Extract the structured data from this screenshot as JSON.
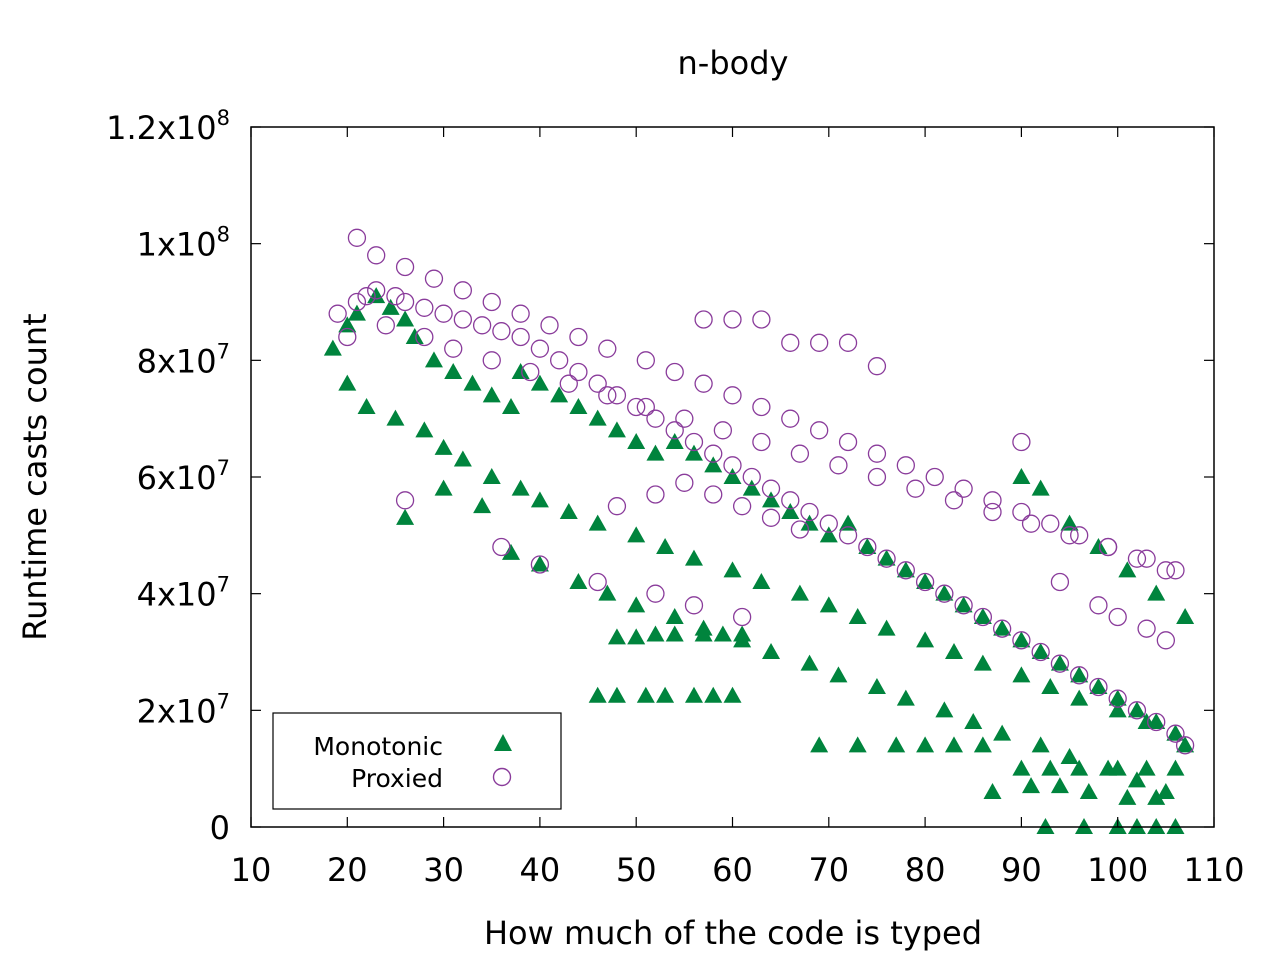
{
  "chart_data": {
    "type": "scatter",
    "title": "n-body",
    "xlabel": "How much of the code is typed",
    "ylabel": "Runtime casts count",
    "xlim": [
      10,
      110
    ],
    "ylim": [
      0,
      120000000
    ],
    "x_ticks": [
      "10",
      "20",
      "30",
      "40",
      "50",
      "60",
      "70",
      "80",
      "90",
      "100",
      "110"
    ],
    "y_ticks": [
      {
        "value": 0,
        "label": "0"
      },
      {
        "value": 20000000,
        "mant": "2x10",
        "exp": "7"
      },
      {
        "value": 40000000,
        "mant": "4x10",
        "exp": "7"
      },
      {
        "value": 60000000,
        "mant": "6x10",
        "exp": "7"
      },
      {
        "value": 80000000,
        "mant": "8x10",
        "exp": "7"
      },
      {
        "value": 100000000,
        "mant": "1x10",
        "exp": "8"
      },
      {
        "value": 120000000,
        "mant": "1.2x10",
        "exp": "8"
      }
    ],
    "grid": false,
    "legend_position": "bottom-left",
    "series": [
      {
        "name": "Monotonic",
        "marker": "filled-triangle",
        "color": "#00843d",
        "x": [
          18.5,
          20,
          21,
          23,
          24.5,
          26,
          27,
          29,
          31,
          33,
          35,
          37,
          38,
          40,
          42,
          44,
          46,
          48,
          50,
          52,
          54,
          56,
          58,
          60,
          62,
          64,
          66,
          68,
          70,
          72,
          74,
          76,
          78,
          80,
          82,
          84,
          86,
          88,
          90,
          92,
          94,
          96,
          98,
          100,
          102,
          104,
          106,
          107,
          20,
          22,
          25,
          28,
          30,
          32,
          35,
          38,
          40,
          43,
          46,
          50,
          53,
          56,
          60,
          63,
          67,
          70,
          73,
          76,
          80,
          83,
          86,
          90,
          93,
          96,
          100,
          103,
          106,
          26,
          30,
          34,
          37,
          40,
          44,
          47,
          50,
          54,
          57,
          61,
          64,
          68,
          71,
          75,
          78,
          82,
          85,
          88,
          92,
          95,
          99,
          102,
          105,
          46,
          48,
          51,
          53,
          56,
          58,
          60,
          48,
          50,
          52,
          54,
          57,
          59,
          61,
          69,
          73,
          77,
          80,
          83,
          86,
          90,
          93,
          96,
          100,
          103,
          106,
          92.5,
          96.5,
          100,
          102,
          104,
          106,
          90,
          92,
          95,
          98,
          101,
          104,
          107,
          87,
          91,
          94,
          97,
          101,
          104
        ],
        "y": [
          82,
          86,
          88,
          91,
          89,
          87,
          84,
          80,
          78,
          76,
          74,
          72,
          78,
          76,
          74,
          72,
          70,
          68,
          66,
          64,
          66,
          64,
          62,
          60,
          58,
          56,
          54,
          52,
          50,
          52,
          48,
          46,
          44,
          42,
          40,
          38,
          36,
          34,
          32,
          30,
          28,
          26,
          24,
          22,
          20,
          18,
          16,
          14,
          76,
          72,
          70,
          68,
          65,
          63,
          60,
          58,
          56,
          54,
          52,
          50,
          48,
          46,
          44,
          42,
          40,
          38,
          36,
          34,
          32,
          30,
          28,
          26,
          24,
          22,
          20,
          18,
          16,
          53,
          58,
          55,
          47,
          45,
          42,
          40,
          38,
          36,
          34,
          32,
          30,
          28,
          26,
          24,
          22,
          20,
          18,
          16,
          14,
          12,
          10,
          8,
          6,
          22.5,
          22.5,
          22.5,
          22.5,
          22.5,
          22.5,
          22.5,
          32.5,
          32.5,
          33,
          33,
          33,
          33,
          33,
          14,
          14,
          14,
          14,
          14,
          14,
          10,
          10,
          10,
          10,
          10,
          10,
          0,
          0,
          0,
          0,
          0,
          0,
          60,
          58,
          52,
          48,
          44,
          40,
          36,
          6,
          7,
          7,
          6,
          5,
          5
        ]
      },
      {
        "name": "Proxied",
        "marker": "open-circle",
        "color": "#8a3c9b",
        "x": [
          19,
          21,
          22,
          23,
          25,
          26,
          28,
          30,
          32,
          34,
          36,
          38,
          40,
          42,
          44,
          46,
          48,
          50,
          52,
          54,
          56,
          58,
          60,
          62,
          64,
          66,
          68,
          70,
          72,
          74,
          76,
          78,
          80,
          82,
          84,
          86,
          88,
          90,
          92,
          94,
          96,
          98,
          100,
          102,
          104,
          106,
          107,
          21,
          23,
          26,
          29,
          32,
          35,
          38,
          41,
          44,
          47,
          51,
          54,
          57,
          60,
          63,
          66,
          69,
          72,
          75,
          78,
          81,
          84,
          87,
          90,
          93,
          96,
          99,
          102,
          105,
          20,
          24,
          28,
          31,
          35,
          39,
          43,
          47,
          51,
          55,
          59,
          63,
          67,
          71,
          75,
          79,
          83,
          87,
          91,
          95,
          99,
          103,
          106,
          57,
          60,
          63,
          66,
          69,
          72,
          75,
          48,
          52,
          55,
          58,
          61,
          64,
          67,
          26,
          36,
          40,
          46,
          52,
          56,
          61,
          90,
          94,
          98,
          100,
          103,
          105
        ],
        "y": [
          88,
          90,
          91,
          92,
          91,
          90,
          89,
          88,
          87,
          86,
          85,
          84,
          82,
          80,
          78,
          76,
          74,
          72,
          70,
          68,
          66,
          64,
          62,
          60,
          58,
          56,
          54,
          52,
          50,
          48,
          46,
          44,
          42,
          40,
          38,
          36,
          34,
          32,
          30,
          28,
          26,
          24,
          22,
          20,
          18,
          16,
          14,
          101,
          98,
          96,
          94,
          92,
          90,
          88,
          86,
          84,
          82,
          80,
          78,
          76,
          74,
          72,
          70,
          68,
          66,
          64,
          62,
          60,
          58,
          56,
          54,
          52,
          50,
          48,
          46,
          44,
          84,
          86,
          84,
          82,
          80,
          78,
          76,
          74,
          72,
          70,
          68,
          66,
          64,
          62,
          60,
          58,
          56,
          54,
          52,
          50,
          48,
          46,
          44,
          87,
          87,
          87,
          83,
          83,
          83,
          79,
          55,
          57,
          59,
          57,
          55,
          53,
          51,
          56,
          48,
          45,
          42,
          40,
          38,
          36,
          66,
          42,
          38,
          36,
          34,
          32
        ]
      }
    ]
  }
}
